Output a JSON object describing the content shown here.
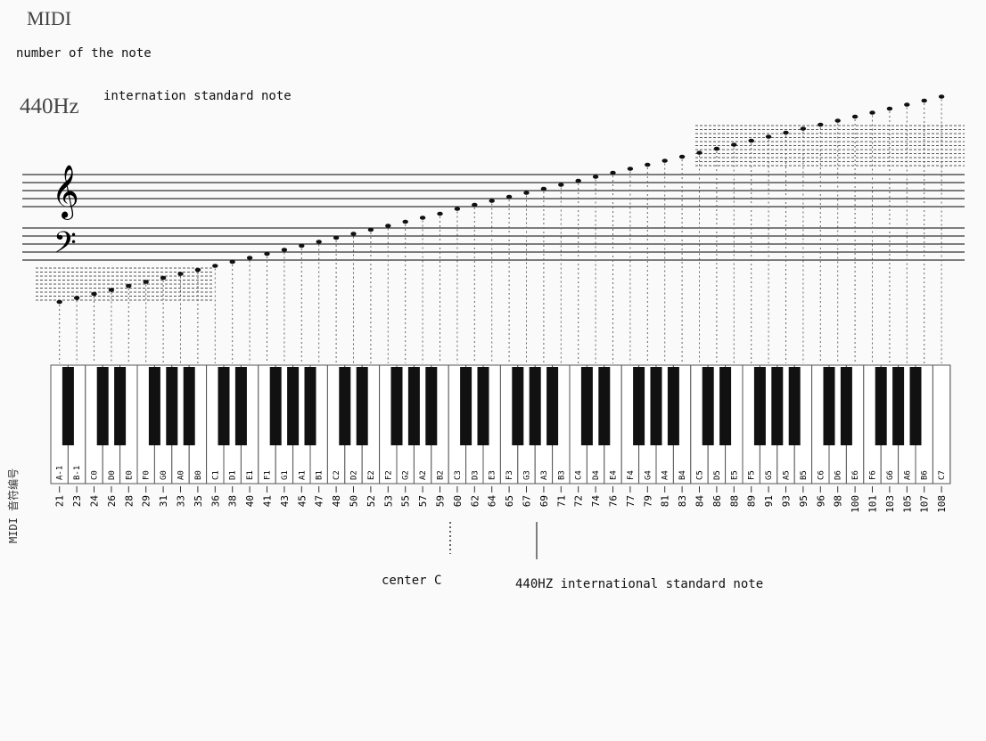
{
  "title": "MIDI",
  "subtitle": "number of the note",
  "freq_label": "440Hz",
  "standard_note_label": "internation standard note",
  "midi_axis_label": "MIDI 音符编号",
  "center_c_label": "center C",
  "a440_label": "440HZ international standard note",
  "clefs": {
    "treble": "𝄞",
    "bass": "𝄢"
  },
  "keys": [
    {
      "name": "A-1",
      "midi": "21"
    },
    {
      "name": "B-1",
      "midi": "23"
    },
    {
      "name": "C0",
      "midi": "24"
    },
    {
      "name": "D0",
      "midi": "26"
    },
    {
      "name": "E0",
      "midi": "28"
    },
    {
      "name": "F0",
      "midi": "29"
    },
    {
      "name": "G0",
      "midi": "31"
    },
    {
      "name": "A0",
      "midi": "33"
    },
    {
      "name": "B0",
      "midi": "35"
    },
    {
      "name": "C1",
      "midi": "36"
    },
    {
      "name": "D1",
      "midi": "38"
    },
    {
      "name": "E1",
      "midi": "40"
    },
    {
      "name": "F1",
      "midi": "41"
    },
    {
      "name": "G1",
      "midi": "43"
    },
    {
      "name": "A1",
      "midi": "45"
    },
    {
      "name": "B1",
      "midi": "47"
    },
    {
      "name": "C2",
      "midi": "48"
    },
    {
      "name": "D2",
      "midi": "50"
    },
    {
      "name": "E2",
      "midi": "52"
    },
    {
      "name": "F2",
      "midi": "53"
    },
    {
      "name": "G2",
      "midi": "55"
    },
    {
      "name": "A2",
      "midi": "57"
    },
    {
      "name": "B2",
      "midi": "59"
    },
    {
      "name": "C3",
      "midi": "60"
    },
    {
      "name": "D3",
      "midi": "62"
    },
    {
      "name": "E3",
      "midi": "64"
    },
    {
      "name": "F3",
      "midi": "65"
    },
    {
      "name": "G3",
      "midi": "67"
    },
    {
      "name": "A3",
      "midi": "69"
    },
    {
      "name": "B3",
      "midi": "71"
    },
    {
      "name": "C4",
      "midi": "72"
    },
    {
      "name": "D4",
      "midi": "74"
    },
    {
      "name": "E4",
      "midi": "76"
    },
    {
      "name": "F4",
      "midi": "77"
    },
    {
      "name": "G4",
      "midi": "79"
    },
    {
      "name": "A4",
      "midi": "81"
    },
    {
      "name": "B4",
      "midi": "83"
    },
    {
      "name": "C5",
      "midi": "84"
    },
    {
      "name": "D5",
      "midi": "86"
    },
    {
      "name": "E5",
      "midi": "88"
    },
    {
      "name": "F5",
      "midi": "89"
    },
    {
      "name": "G5",
      "midi": "91"
    },
    {
      "name": "A5",
      "midi": "93"
    },
    {
      "name": "B5",
      "midi": "95"
    },
    {
      "name": "C6",
      "midi": "96"
    },
    {
      "name": "D6",
      "midi": "98"
    },
    {
      "name": "E6",
      "midi": "100"
    },
    {
      "name": "F6",
      "midi": "101"
    },
    {
      "name": "G6",
      "midi": "103"
    },
    {
      "name": "A6",
      "midi": "105"
    },
    {
      "name": "B6",
      "midi": "107"
    },
    {
      "name": "C7",
      "midi": "108"
    }
  ]
}
